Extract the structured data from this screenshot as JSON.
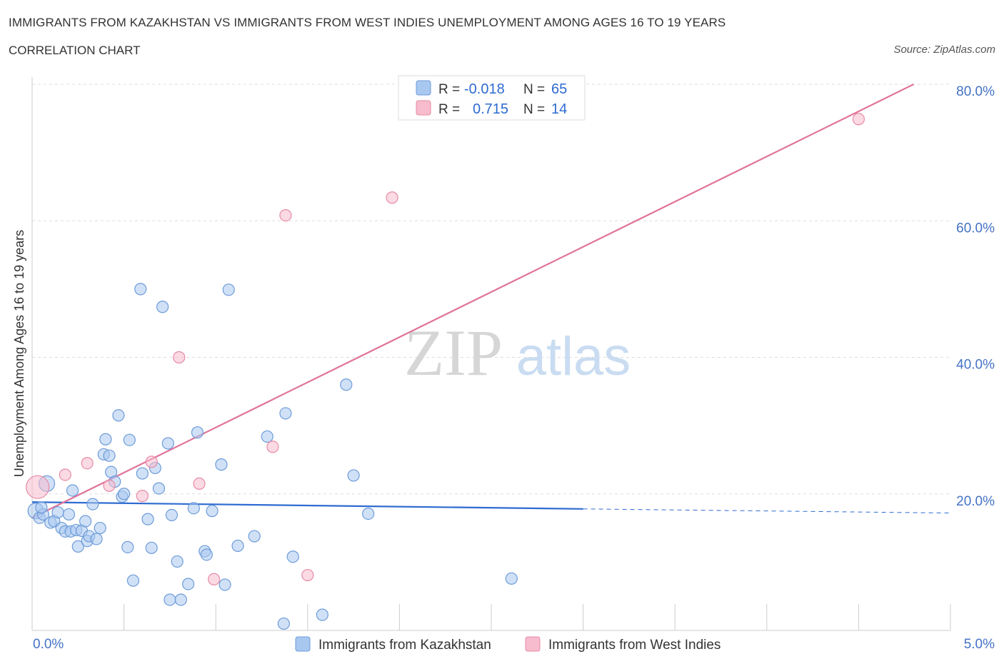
{
  "header": {
    "title": "IMMIGRANTS FROM KAZAKHSTAN VS IMMIGRANTS FROM WEST INDIES UNEMPLOYMENT AMONG AGES 16 TO 19 YEARS",
    "subtitle": "CORRELATION CHART",
    "source": "Source: ZipAtlas.com"
  },
  "watermark": {
    "zip": "ZIP",
    "atlas": "atlas"
  },
  "legend_top": {
    "rows": [
      {
        "r_label": "R =",
        "r_value": "-0.018",
        "n_label": "N =",
        "n_value": "65",
        "color": "#a9c8f0"
      },
      {
        "r_label": "R =",
        "r_value": "0.715",
        "n_label": "N =",
        "n_value": "14",
        "color": "#f7b8cb"
      }
    ]
  },
  "legend_bottom": [
    {
      "label": "Immigrants from Kazakhstan",
      "color": "#a9c8f0"
    },
    {
      "label": "Immigrants from West Indies",
      "color": "#f7b8cb"
    }
  ],
  "colors": {
    "kazakhstan_fill": "#a9c8f0",
    "kazakhstan_stroke": "#6d9bd8",
    "kazakhstan_line": "#2e6bd1",
    "westindies_fill": "#f7bccd",
    "westindies_stroke": "#e58aa5",
    "westindies_line": "#e0739a",
    "grid": "#dddddd",
    "axis_tick_label": "#4472c4"
  },
  "chart_data": {
    "type": "scatter",
    "title": "IMMIGRANTS FROM KAZAKHSTAN VS IMMIGRANTS FROM WEST INDIES UNEMPLOYMENT AMONG AGES 16 TO 19 YEARS",
    "xlabel": "",
    "ylabel": "Unemployment Among Ages 16 to 19 years",
    "xlim": [
      0,
      5
    ],
    "ylim": [
      0,
      80
    ],
    "x_tick_labels": [
      "0.0%",
      "5.0%"
    ],
    "y_tick_labels": [
      "20.0%",
      "40.0%",
      "60.0%",
      "80.0%"
    ],
    "y_ticks": [
      20,
      40,
      60,
      80
    ],
    "grid": true,
    "legend_position": "top-center",
    "series": [
      {
        "name": "Immigrants from Kazakhstan",
        "points": [
          [
            0.02,
            17.5
          ],
          [
            0.04,
            16.5
          ],
          [
            0.06,
            17.0
          ],
          [
            0.08,
            21.5
          ],
          [
            0.1,
            15.8
          ],
          [
            0.12,
            16.0
          ],
          [
            0.14,
            17.3
          ],
          [
            0.16,
            15.0
          ],
          [
            0.18,
            14.5
          ],
          [
            0.2,
            17.0
          ],
          [
            0.21,
            14.5
          ],
          [
            0.22,
            20.5
          ],
          [
            0.24,
            14.7
          ],
          [
            0.25,
            12.3
          ],
          [
            0.27,
            14.6
          ],
          [
            0.29,
            16.0
          ],
          [
            0.3,
            13.1
          ],
          [
            0.31,
            13.8
          ],
          [
            0.33,
            18.5
          ],
          [
            0.35,
            13.4
          ],
          [
            0.37,
            15.0
          ],
          [
            0.39,
            25.8
          ],
          [
            0.4,
            28.0
          ],
          [
            0.42,
            25.6
          ],
          [
            0.43,
            23.2
          ],
          [
            0.45,
            21.8
          ],
          [
            0.47,
            31.5
          ],
          [
            0.49,
            19.6
          ],
          [
            0.5,
            20.0
          ],
          [
            0.52,
            12.2
          ],
          [
            0.53,
            27.9
          ],
          [
            0.55,
            7.3
          ],
          [
            0.59,
            50.0
          ],
          [
            0.6,
            23.0
          ],
          [
            0.63,
            16.3
          ],
          [
            0.65,
            12.1
          ],
          [
            0.67,
            23.8
          ],
          [
            0.69,
            20.8
          ],
          [
            0.71,
            47.4
          ],
          [
            0.74,
            27.4
          ],
          [
            0.75,
            4.5
          ],
          [
            0.76,
            16.9
          ],
          [
            0.79,
            10.1
          ],
          [
            0.81,
            4.5
          ],
          [
            0.85,
            6.8
          ],
          [
            0.88,
            17.9
          ],
          [
            0.9,
            29.0
          ],
          [
            0.94,
            11.6
          ],
          [
            0.95,
            11.1
          ],
          [
            0.98,
            17.5
          ],
          [
            1.03,
            24.3
          ],
          [
            1.05,
            6.7
          ],
          [
            1.07,
            49.9
          ],
          [
            1.12,
            12.4
          ],
          [
            1.21,
            13.8
          ],
          [
            1.28,
            28.4
          ],
          [
            1.38,
            31.8
          ],
          [
            1.37,
            1.0
          ],
          [
            1.42,
            10.8
          ],
          [
            1.58,
            2.3
          ],
          [
            1.71,
            36.0
          ],
          [
            1.75,
            22.7
          ],
          [
            1.83,
            17.1
          ],
          [
            2.61,
            7.6
          ],
          [
            0.05,
            18.0
          ]
        ],
        "trend": {
          "x": [
            0.0,
            3.0
          ],
          "y": [
            18.8,
            17.8
          ],
          "dashed_to_x": 5.0,
          "dashed_to_y": 17.2
        }
      },
      {
        "name": "Immigrants from West Indies",
        "points": [
          [
            0.03,
            21.0
          ],
          [
            0.18,
            22.8
          ],
          [
            0.3,
            24.5
          ],
          [
            0.42,
            21.2
          ],
          [
            0.6,
            19.7
          ],
          [
            0.65,
            24.7
          ],
          [
            0.8,
            40.0
          ],
          [
            0.91,
            21.5
          ],
          [
            0.99,
            7.5
          ],
          [
            1.31,
            26.9
          ],
          [
            1.38,
            60.8
          ],
          [
            1.5,
            8.1
          ],
          [
            1.96,
            63.4
          ],
          [
            4.5,
            74.9
          ]
        ],
        "trend": {
          "x": [
            0.0,
            4.8
          ],
          "y": [
            16.5,
            80.0
          ]
        }
      }
    ]
  },
  "axes": {
    "ylabel": "Unemployment Among Ages 16 to 19 years",
    "x_min_label": "0.0%",
    "x_max_label": "5.0%",
    "y_labels": [
      "80.0%",
      "60.0%",
      "40.0%",
      "20.0%"
    ]
  }
}
